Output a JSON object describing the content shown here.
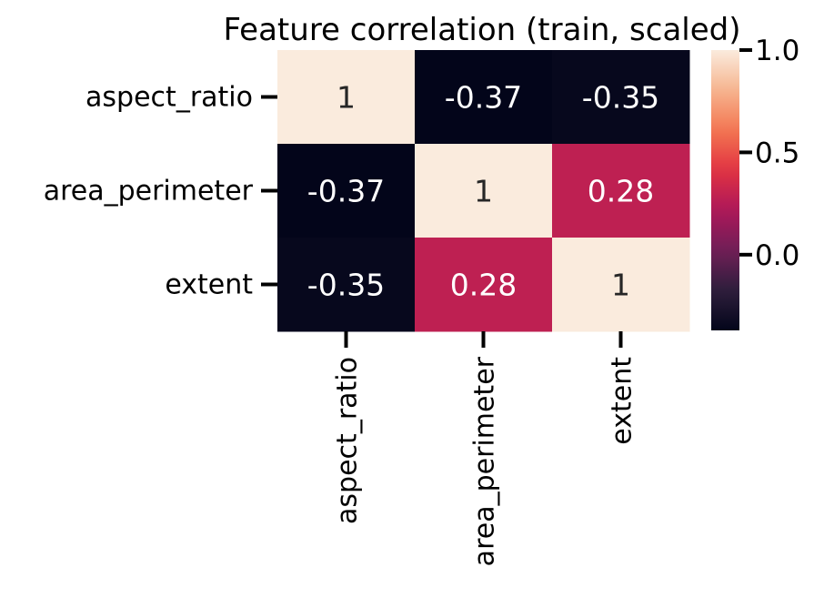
{
  "chart_data": {
    "type": "heatmap",
    "title": "Feature correlation (train, scaled)",
    "x_categories": [
      "aspect_ratio",
      "area_perimeter",
      "extent"
    ],
    "y_categories": [
      "aspect_ratio",
      "area_perimeter",
      "extent"
    ],
    "values": [
      [
        1.0,
        -0.37,
        -0.35
      ],
      [
        -0.37,
        1.0,
        0.28
      ],
      [
        -0.35,
        0.28,
        1.0
      ]
    ],
    "annotations": [
      [
        "1",
        "-0.37",
        "-0.35"
      ],
      [
        "-0.37",
        "1",
        "0.28"
      ],
      [
        "-0.35",
        "0.28",
        "1"
      ]
    ],
    "colormap": "rocket",
    "vmin": -0.37,
    "vmax": 1.0,
    "colorbar": {
      "ticks": [
        0.0,
        0.5,
        1.0
      ],
      "tick_labels": [
        "0.0",
        "0.5",
        "1.0"
      ]
    },
    "grid": false,
    "xlabel": "",
    "ylabel": ""
  },
  "colors": {
    "text_light": "#ffffff",
    "text_dark": "#262626",
    "rocket_stops": [
      "#03051a",
      "#2e1e3c",
      "#701f57",
      "#ad1759",
      "#e13342",
      "#f37651",
      "#f6b48f",
      "#faebdd"
    ]
  }
}
